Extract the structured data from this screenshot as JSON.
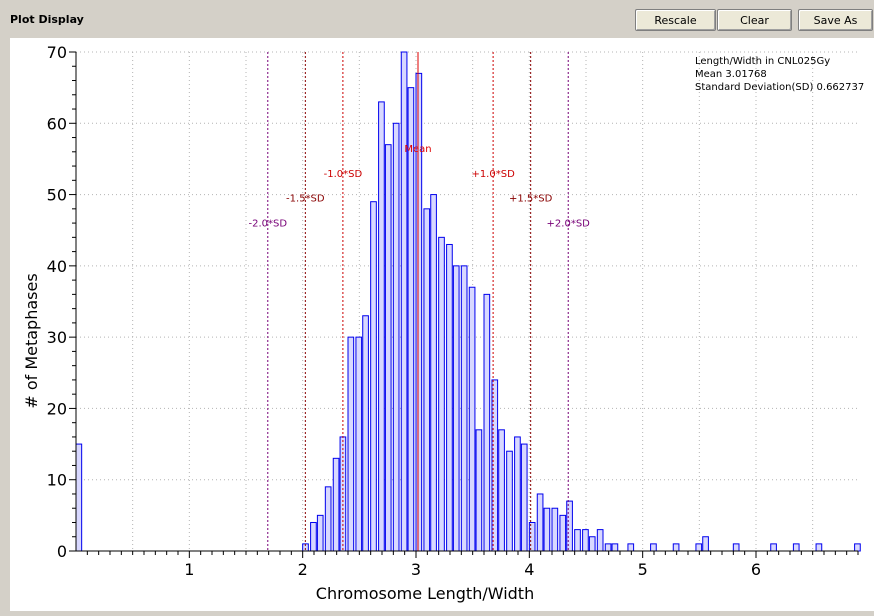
{
  "window": {
    "title": "Plot Display"
  },
  "toolbar": {
    "rescale_label": "Rescale",
    "clear_label": "Clear",
    "save_as_label": "Save As"
  },
  "chart_data": {
    "type": "bar",
    "xlabel": "Chromosome Length/Width",
    "ylabel": "# of Metaphases",
    "xlim": [
      0,
      6.9
    ],
    "ylim": [
      0,
      70
    ],
    "xticks": [
      1,
      2,
      3,
      4,
      5,
      6
    ],
    "yticks": [
      0,
      10,
      20,
      30,
      40,
      50,
      60,
      70
    ],
    "grid": true,
    "bin_width": 0.05,
    "bins": [
      [
        0.0,
        15
      ],
      [
        2.0,
        1
      ],
      [
        2.07,
        4
      ],
      [
        2.13,
        5
      ],
      [
        2.2,
        9
      ],
      [
        2.27,
        13
      ],
      [
        2.33,
        16
      ],
      [
        2.4,
        30
      ],
      [
        2.47,
        30
      ],
      [
        2.53,
        33
      ],
      [
        2.6,
        49
      ],
      [
        2.67,
        63
      ],
      [
        2.73,
        57
      ],
      [
        2.8,
        60
      ],
      [
        2.87,
        70
      ],
      [
        2.93,
        65
      ],
      [
        3.0,
        67
      ],
      [
        3.07,
        48
      ],
      [
        3.13,
        50
      ],
      [
        3.2,
        44
      ],
      [
        3.27,
        43
      ],
      [
        3.33,
        40
      ],
      [
        3.4,
        40
      ],
      [
        3.47,
        37
      ],
      [
        3.53,
        17
      ],
      [
        3.6,
        36
      ],
      [
        3.67,
        24
      ],
      [
        3.73,
        17
      ],
      [
        3.8,
        14
      ],
      [
        3.87,
        16
      ],
      [
        3.93,
        15
      ],
      [
        4.0,
        4
      ],
      [
        4.07,
        8
      ],
      [
        4.13,
        6
      ],
      [
        4.2,
        6
      ],
      [
        4.27,
        5
      ],
      [
        4.33,
        7
      ],
      [
        4.4,
        3
      ],
      [
        4.47,
        3
      ],
      [
        4.53,
        2
      ],
      [
        4.6,
        3
      ],
      [
        4.67,
        1
      ],
      [
        4.73,
        1
      ],
      [
        4.87,
        1
      ],
      [
        5.07,
        1
      ],
      [
        5.27,
        1
      ],
      [
        5.47,
        1
      ],
      [
        5.53,
        2
      ],
      [
        5.8,
        1
      ],
      [
        6.13,
        1
      ],
      [
        6.33,
        1
      ],
      [
        6.53,
        1
      ],
      [
        6.87,
        1
      ]
    ],
    "mean": 3.01768,
    "sd": 0.662737,
    "reference_lines": [
      {
        "label": "Mean",
        "x": 3.01768,
        "color": "#dd0000",
        "style": "solid",
        "label_y": 56
      },
      {
        "label": "-1.0*SD",
        "x": 2.35494,
        "color": "#cc0000",
        "style": "dotted",
        "label_y": 52.5
      },
      {
        "label": "+1.0*SD",
        "x": 3.68042,
        "color": "#cc0000",
        "style": "dotted",
        "label_y": 52.5
      },
      {
        "label": "-1.5*SD",
        "x": 2.02357,
        "color": "#880000",
        "style": "dotted",
        "label_y": 49
      },
      {
        "label": "+1.5*SD",
        "x": 4.01179,
        "color": "#880000",
        "style": "dotted",
        "label_y": 49
      },
      {
        "label": "-2.0*SD",
        "x": 1.69221,
        "color": "#770077",
        "style": "dotted",
        "label_y": 45.5
      },
      {
        "label": "+2.0*SD",
        "x": 4.34315,
        "color": "#770077",
        "style": "dotted",
        "label_y": 45.5
      }
    ],
    "info_lines": [
      "Length/Width in CNL025Gy",
      "Mean 3.01768",
      "Standard Deviation(SD) 0.662737"
    ],
    "colors": {
      "bar_fill": "#d8d8ff",
      "bar_stroke": "#0000ee",
      "grid": "#b4b4b4"
    }
  }
}
